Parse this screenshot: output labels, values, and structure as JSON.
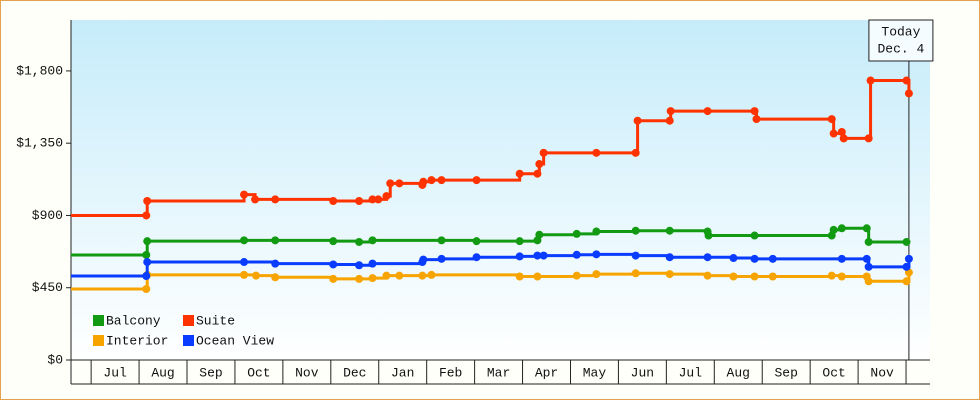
{
  "chart_data": {
    "type": "step-line",
    "categories": [
      null,
      "Jul",
      "Aug",
      "Sep",
      "Oct",
      "Nov",
      "Dec",
      "Jan",
      "Feb",
      "Mar",
      "Apr",
      "May",
      "Jun",
      "Jul",
      "Aug",
      "Sep",
      "Oct",
      "Nov"
    ],
    "category_starts": [
      -0.42,
      0,
      1,
      2,
      3,
      4,
      5,
      6,
      7,
      8,
      9,
      10,
      11,
      12,
      13,
      14,
      15,
      16
    ],
    "xlim": [
      -0.42,
      17.5
    ],
    "ylim": [
      0,
      2117
    ],
    "yticks": [
      {
        "value": 0,
        "label": "$0"
      },
      {
        "value": 450,
        "label": "$450"
      },
      {
        "value": 900,
        "label": "$900"
      },
      {
        "value": 1350,
        "label": "$1,350"
      },
      {
        "value": 1800,
        "label": "$1,800"
      }
    ],
    "grid": false,
    "legend": "lower left",
    "series": [
      {
        "name": "Balcony",
        "color": "#129b12",
        "x": [
          -0.42,
          1.15,
          1.17,
          3.19,
          3.84,
          5.05,
          5.59,
          5.87,
          7.31,
          8.04,
          8.94,
          9.31,
          9.35,
          10.13,
          10.54,
          11.36,
          12.07,
          12.86,
          12.88,
          13.84,
          15.45,
          15.49,
          15.66,
          16.18,
          16.22,
          17.01
        ],
        "values": [
          654,
          654,
          740,
          745,
          745,
          740,
          735,
          745,
          745,
          740,
          740,
          745,
          780,
          785,
          800,
          805,
          805,
          800,
          775,
          775,
          775,
          810,
          820,
          820,
          735,
          735
        ]
      },
      {
        "name": "Suite",
        "color": "#ff3300",
        "x": [
          -0.42,
          1.15,
          1.17,
          3.19,
          3.42,
          3.84,
          5.05,
          5.59,
          5.87,
          5.99,
          6.16,
          6.24,
          6.43,
          6.91,
          6.93,
          7.1,
          7.31,
          8.04,
          8.94,
          9.31,
          9.35,
          9.44,
          10.54,
          11.36,
          11.4,
          12.07,
          12.09,
          12.86,
          13.84,
          13.88,
          15.45,
          15.49,
          15.66,
          15.7,
          16.22,
          16.26,
          17.01,
          17.06
        ],
        "values": [
          900,
          900,
          990,
          1030,
          1000,
          1000,
          990,
          990,
          1000,
          1000,
          1020,
          1100,
          1100,
          1090,
          1110,
          1120,
          1120,
          1120,
          1160,
          1160,
          1220,
          1290,
          1290,
          1290,
          1490,
          1490,
          1550,
          1550,
          1550,
          1500,
          1500,
          1410,
          1420,
          1380,
          1380,
          1740,
          1740,
          1660
        ]
      },
      {
        "name": "Interior",
        "color": "#f8a400",
        "x": [
          -0.42,
          1.15,
          1.17,
          3.19,
          3.44,
          3.84,
          5.05,
          5.59,
          5.87,
          6.16,
          6.43,
          6.91,
          7.1,
          8.94,
          9.31,
          10.13,
          10.54,
          11.36,
          12.07,
          12.86,
          13.4,
          13.84,
          14.22,
          15.45,
          15.66,
          16.18,
          16.22,
          17.01,
          17.06
        ],
        "values": [
          442,
          442,
          530,
          530,
          525,
          515,
          505,
          505,
          510,
          525,
          525,
          525,
          530,
          520,
          520,
          525,
          535,
          540,
          535,
          525,
          520,
          520,
          520,
          525,
          520,
          520,
          490,
          490,
          545
        ]
      },
      {
        "name": "Ocean View",
        "color": "#0a3cff",
        "x": [
          -0.42,
          1.15,
          1.17,
          3.19,
          3.84,
          5.05,
          5.59,
          5.87,
          6.91,
          6.93,
          7.31,
          8.04,
          8.94,
          9.31,
          9.44,
          10.13,
          10.54,
          11.36,
          12.07,
          12.86,
          13.4,
          13.84,
          14.22,
          15.66,
          16.18,
          16.22,
          17.01,
          17.06
        ],
        "values": [
          523,
          523,
          610,
          610,
          600,
          595,
          590,
          600,
          610,
          625,
          630,
          640,
          645,
          650,
          650,
          655,
          658,
          650,
          640,
          640,
          635,
          630,
          630,
          630,
          630,
          580,
          580,
          630
        ]
      }
    ],
    "annotation": {
      "x": 17.06,
      "lines": [
        "Today",
        "Dec. 4"
      ]
    }
  }
}
